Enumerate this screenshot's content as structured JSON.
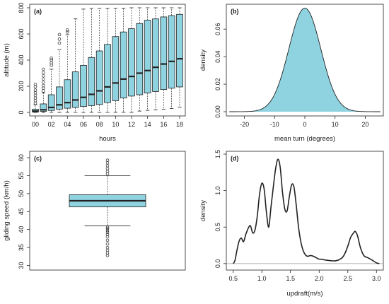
{
  "colors": {
    "fill": "#8fd3e0",
    "line": "#222222",
    "zero": "#9a9a9a"
  },
  "chart_data": [
    {
      "panel": "(a)",
      "type": "boxplot",
      "xlabel": "hours",
      "ylabel": "altitude (m)",
      "ylim": [
        0,
        800
      ],
      "yticks": [
        0,
        200,
        400,
        600,
        800
      ],
      "categories": [
        "00",
        "01",
        "02",
        "03",
        "04",
        "05",
        "06",
        "07",
        "08",
        "09",
        "10",
        "11",
        "12",
        "13",
        "14",
        "15",
        "16",
        "17",
        "18"
      ],
      "xtick_labels": [
        "00",
        "02",
        "04",
        "06",
        "08",
        "10",
        "12",
        "14",
        "16",
        "18"
      ],
      "boxes": [
        {
          "q1": 3,
          "median": 10,
          "q3": 25,
          "whisker_low": 0,
          "whisker_high": 60,
          "outliers": [
            70,
            90,
            110,
            130,
            150,
            170,
            195,
            215
          ]
        },
        {
          "q1": 8,
          "median": 20,
          "q3": 65,
          "whisker_low": 0,
          "whisker_high": 150,
          "outliers": [
            165,
            185,
            205,
            230,
            255,
            280,
            305,
            330
          ]
        },
        {
          "q1": 15,
          "median": 38,
          "q3": 135,
          "whisker_low": 0,
          "whisker_high": 330,
          "outliers": [
            360,
            380,
            400,
            415
          ]
        },
        {
          "q1": 25,
          "median": 58,
          "q3": 195,
          "whisker_low": 0,
          "whisker_high": 480,
          "outliers": [
            530,
            560,
            595
          ]
        },
        {
          "q1": 32,
          "median": 75,
          "q3": 250,
          "whisker_low": 0,
          "whisker_high": 595,
          "outliers": [
            615,
            630
          ]
        },
        {
          "q1": 38,
          "median": 95,
          "q3": 310,
          "whisker_low": 0,
          "whisker_high": 715,
          "outliers": []
        },
        {
          "q1": 45,
          "median": 115,
          "q3": 360,
          "whisker_low": 0,
          "whisker_high": 790,
          "outliers": []
        },
        {
          "q1": 52,
          "median": 138,
          "q3": 420,
          "whisker_low": 0,
          "whisker_high": 795,
          "outliers": []
        },
        {
          "q1": 60,
          "median": 165,
          "q3": 470,
          "whisker_low": 0,
          "whisker_high": 795,
          "outliers": []
        },
        {
          "q1": 75,
          "median": 195,
          "q3": 520,
          "whisker_low": 0,
          "whisker_high": 795,
          "outliers": []
        },
        {
          "q1": 90,
          "median": 225,
          "q3": 580,
          "whisker_low": 0,
          "whisker_high": 795,
          "outliers": []
        },
        {
          "q1": 110,
          "median": 255,
          "q3": 615,
          "whisker_low": 0,
          "whisker_high": 795,
          "outliers": []
        },
        {
          "q1": 125,
          "median": 275,
          "q3": 640,
          "whisker_low": 0,
          "whisker_high": 800,
          "outliers": []
        },
        {
          "q1": 135,
          "median": 300,
          "q3": 680,
          "whisker_low": 10,
          "whisker_high": 800,
          "outliers": []
        },
        {
          "q1": 148,
          "median": 320,
          "q3": 705,
          "whisker_low": 15,
          "whisker_high": 800,
          "outliers": []
        },
        {
          "q1": 160,
          "median": 345,
          "q3": 715,
          "whisker_low": 20,
          "whisker_high": 800,
          "outliers": []
        },
        {
          "q1": 175,
          "median": 370,
          "q3": 730,
          "whisker_low": 25,
          "whisker_high": 800,
          "outliers": []
        },
        {
          "q1": 185,
          "median": 390,
          "q3": 740,
          "whisker_low": 30,
          "whisker_high": 800,
          "outliers": []
        },
        {
          "q1": 195,
          "median": 410,
          "q3": 750,
          "whisker_low": 40,
          "whisker_high": 800,
          "outliers": []
        }
      ]
    },
    {
      "panel": "(b)",
      "type": "density",
      "xlabel": "mean turn (degrees)",
      "ylabel": "density",
      "xlim": [
        -26,
        26
      ],
      "ylim": [
        0,
        0.075
      ],
      "xticks": [
        -20,
        -10,
        0,
        10,
        20
      ],
      "yticks": [
        0.0,
        0.02,
        0.04,
        0.06
      ],
      "ytick_labels": [
        "0.00",
        "0.02",
        "0.04",
        "0.06"
      ],
      "distribution": {
        "shape": "normal",
        "mean": 0,
        "sd": 5.3
      },
      "filled": true
    },
    {
      "panel": "(c)",
      "type": "boxplot",
      "xlabel": "",
      "ylabel": "gliding speed (km/h)",
      "ylim": [
        29.5,
        61
      ],
      "yticks": [
        30,
        35,
        40,
        45,
        50,
        55,
        60
      ],
      "boxes": [
        {
          "q1": 46.3,
          "median": 48.0,
          "q3": 49.7,
          "whisker_low": 41.0,
          "whisker_high": 55.0,
          "outliers": [
            32.8,
            33.5,
            34.2,
            35.0,
            36.0,
            37.0,
            38.0,
            38.6,
            39.2,
            39.7,
            40.2,
            40.6,
            55.5,
            56.2,
            57.0,
            57.8,
            58.6,
            59.3
          ]
        }
      ]
    },
    {
      "panel": "(d)",
      "type": "line",
      "xlabel": "updraft(m/s)",
      "ylabel": "density",
      "xlim": [
        0.38,
        3.12
      ],
      "ylim": [
        -0.05,
        1.5
      ],
      "xticks": [
        0.5,
        1.0,
        1.5,
        2.0,
        2.5,
        3.0
      ],
      "xtick_labels": [
        "0.5",
        "1.0",
        "1.5",
        "2.0",
        "2.5",
        "3.0"
      ],
      "yticks": [
        0.0,
        0.5,
        1.0,
        1.5
      ],
      "ytick_labels": [
        "0.0",
        "0.5",
        "1.0",
        "1.5"
      ],
      "x": [
        0.5,
        0.53,
        0.56,
        0.6,
        0.64,
        0.68,
        0.72,
        0.76,
        0.8,
        0.84,
        0.88,
        0.92,
        0.96,
        1.0,
        1.04,
        1.08,
        1.12,
        1.16,
        1.2,
        1.24,
        1.28,
        1.32,
        1.36,
        1.4,
        1.44,
        1.48,
        1.52,
        1.56,
        1.6,
        1.64,
        1.68,
        1.72,
        1.76,
        1.8,
        1.85,
        1.9,
        1.95,
        2.0,
        2.05,
        2.1,
        2.2,
        2.3,
        2.4,
        2.45,
        2.5,
        2.55,
        2.6,
        2.63,
        2.67,
        2.72,
        2.78,
        2.85,
        2.92,
        3.0,
        3.05
      ],
      "y": [
        0.0,
        0.04,
        0.16,
        0.3,
        0.35,
        0.3,
        0.4,
        0.48,
        0.52,
        0.42,
        0.46,
        0.65,
        0.95,
        1.1,
        1.02,
        0.7,
        0.5,
        0.78,
        1.05,
        1.3,
        1.43,
        1.32,
        0.98,
        0.75,
        0.72,
        0.92,
        1.08,
        1.05,
        0.8,
        0.5,
        0.3,
        0.18,
        0.12,
        0.1,
        0.11,
        0.1,
        0.08,
        0.06,
        0.06,
        0.05,
        0.04,
        0.04,
        0.08,
        0.14,
        0.24,
        0.36,
        0.42,
        0.44,
        0.38,
        0.22,
        0.11,
        0.08,
        0.05,
        0.01,
        0.0
      ],
      "zero_line": true
    }
  ]
}
